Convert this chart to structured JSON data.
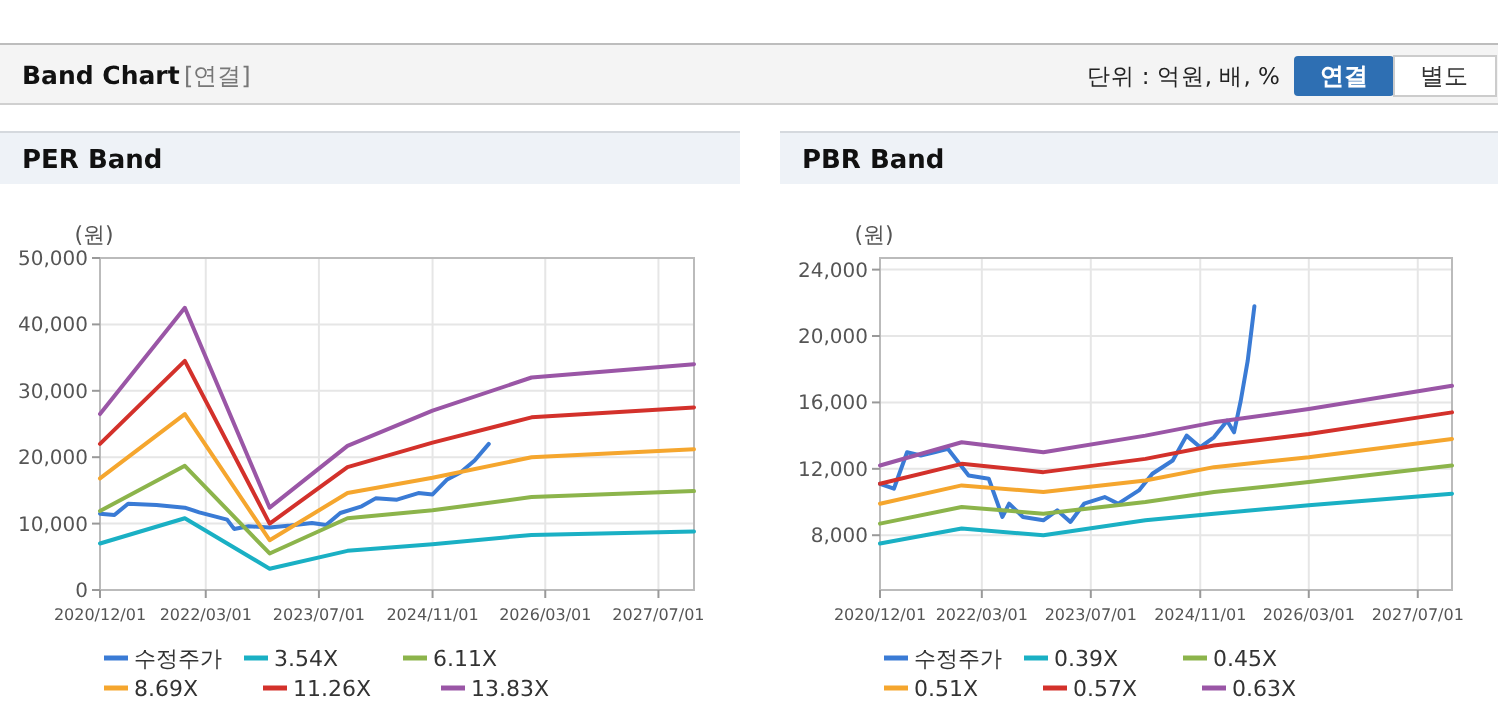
{
  "chart_data": [
    {
      "type": "line",
      "title": "PER Band",
      "ylabel": "(원)",
      "annotations": [
        "Band Chart",
        "[연결]",
        "단위 : 억원, 배, %",
        "연결",
        "별도"
      ],
      "xlim": [
        "2020-12-01",
        "2027-12-01"
      ],
      "xticks": [
        {
          "value": "2020-12-01",
          "label": "2020/12/01"
        },
        {
          "value": "2022-03-01",
          "label": "2022/03/01"
        },
        {
          "value": "2023-07-01",
          "label": "2023/07/01"
        },
        {
          "value": "2024-11-01",
          "label": "2024/11/01"
        },
        {
          "value": "2026-03-01",
          "label": "2026/03/01"
        },
        {
          "value": "2027-07-01",
          "label": "2027/07/01"
        }
      ],
      "ylim": [
        0,
        50000
      ],
      "yticks": [
        0,
        {
          "value": 10000,
          "label": "10,000"
        },
        {
          "value": 20000,
          "label": "20,000"
        },
        {
          "value": 30000,
          "label": "30,000"
        },
        {
          "value": 40000,
          "label": "40,000"
        },
        {
          "value": 50000,
          "label": "50,000"
        }
      ],
      "grid": true,
      "legend": "bottom",
      "marker": "none",
      "line_style": "solid",
      "series": [
        {
          "name": "수정주가",
          "color": "#3a7bd5",
          "x": [
            "2020-12",
            "2021-02",
            "2021-04",
            "2021-08",
            "2021-12",
            "2022-02",
            "2022-06",
            "2022-07",
            "2022-09",
            "2022-12",
            "2023-03",
            "2023-06",
            "2023-08",
            "2023-10",
            "2024-01",
            "2024-03",
            "2024-06",
            "2024-09",
            "2024-11",
            "2025-01",
            "2025-03",
            "2025-05",
            "2025-07"
          ],
          "values": [
            11500,
            11300,
            13000,
            12800,
            12400,
            11700,
            10600,
            9200,
            9600,
            9400,
            9700,
            10100,
            9800,
            11600,
            12600,
            13800,
            13600,
            14600,
            14400,
            16600,
            17700,
            19500,
            22000
          ]
        },
        {
          "name": "3.54X",
          "color": "#1ab0c4",
          "x": [
            "2020-12",
            "2021-12",
            "2022-12",
            "2023-11",
            "2024-11",
            "2026-01",
            "2027-12"
          ],
          "values": [
            7000,
            10800,
            3200,
            5900,
            6900,
            8300,
            8800
          ]
        },
        {
          "name": "6.11X",
          "color": "#8cb44b",
          "x": [
            "2020-12",
            "2021-12",
            "2022-12",
            "2023-11",
            "2024-11",
            "2026-01",
            "2027-12"
          ],
          "values": [
            11900,
            18700,
            5500,
            10800,
            12000,
            14000,
            14900
          ]
        },
        {
          "name": "8.69X",
          "color": "#f5a62e",
          "x": [
            "2020-12",
            "2021-12",
            "2022-12",
            "2023-11",
            "2024-11",
            "2026-01",
            "2027-12"
          ],
          "values": [
            16800,
            26500,
            7500,
            14600,
            16900,
            20000,
            21200
          ]
        },
        {
          "name": "11.26X",
          "color": "#d3312b",
          "x": [
            "2020-12",
            "2021-12",
            "2022-12",
            "2023-11",
            "2024-11",
            "2026-01",
            "2027-12"
          ],
          "values": [
            22000,
            34500,
            10000,
            18500,
            22200,
            26000,
            27500
          ]
        },
        {
          "name": "13.83X",
          "color": "#9a56a6",
          "x": [
            "2020-12",
            "2021-12",
            "2022-12",
            "2023-11",
            "2024-11",
            "2026-01",
            "2027-12"
          ],
          "values": [
            26500,
            42500,
            12400,
            21700,
            27000,
            32000,
            34000
          ]
        }
      ]
    },
    {
      "type": "line",
      "title": "PBR Band",
      "ylabel": "(원)",
      "xlim": [
        "2020-12-01",
        "2027-12-01"
      ],
      "xticks": [
        {
          "value": "2020-12-01",
          "label": "2020/12/01"
        },
        {
          "value": "2022-03-01",
          "label": "2022/03/01"
        },
        {
          "value": "2023-07-01",
          "label": "2023/07/01"
        },
        {
          "value": "2024-11-01",
          "label": "2024/11/01"
        },
        {
          "value": "2026-03-01",
          "label": "2026/03/01"
        },
        {
          "value": "2027-07-01",
          "label": "2027/07/01"
        }
      ],
      "ylim": [
        4700,
        24700
      ],
      "yticks": [
        {
          "value": 8000,
          "label": "8,000"
        },
        {
          "value": 12000,
          "label": "12,000"
        },
        {
          "value": 16000,
          "label": "16,000"
        },
        {
          "value": 20000,
          "label": "20,000"
        },
        {
          "value": 24000,
          "label": "24,000"
        }
      ],
      "grid": true,
      "legend": "bottom",
      "marker": "none",
      "line_style": "solid",
      "series": [
        {
          "name": "수정주가",
          "color": "#3a7bd5",
          "x": [
            "2020-12",
            "2021-02",
            "2021-04",
            "2021-06",
            "2021-08",
            "2021-10",
            "2022-01",
            "2022-04",
            "2022-06",
            "2022-07",
            "2022-09",
            "2022-12",
            "2023-02",
            "2023-04",
            "2023-06",
            "2023-09",
            "2023-11",
            "2024-02",
            "2024-04",
            "2024-07",
            "2024-09",
            "2024-11",
            "2025-01",
            "2025-03",
            "2025-04",
            "2025-05",
            "2025-06",
            "2025-07"
          ],
          "values": [
            11100,
            10800,
            13000,
            12800,
            13000,
            13200,
            11600,
            11400,
            9100,
            9900,
            9100,
            8900,
            9500,
            8800,
            9900,
            10300,
            9900,
            10700,
            11700,
            12500,
            14000,
            13300,
            13900,
            14900,
            14200,
            16100,
            18500,
            21800
          ]
        },
        {
          "name": "0.39X",
          "color": "#1ab0c4",
          "x": [
            "2020-12",
            "2021-12",
            "2022-12",
            "2024-03",
            "2025-01",
            "2026-03",
            "2027-12"
          ],
          "values": [
            7500,
            8400,
            8000,
            8900,
            9300,
            9800,
            10500
          ]
        },
        {
          "name": "0.45X",
          "color": "#8cb44b",
          "x": [
            "2020-12",
            "2021-12",
            "2022-12",
            "2024-03",
            "2025-01",
            "2026-03",
            "2027-12"
          ],
          "values": [
            8700,
            9700,
            9300,
            10000,
            10600,
            11200,
            12200
          ]
        },
        {
          "name": "0.51X",
          "color": "#f5a62e",
          "x": [
            "2020-12",
            "2021-12",
            "2022-12",
            "2024-03",
            "2025-01",
            "2026-03",
            "2027-12"
          ],
          "values": [
            9900,
            11000,
            10600,
            11300,
            12100,
            12700,
            13800
          ]
        },
        {
          "name": "0.57X",
          "color": "#d3312b",
          "x": [
            "2020-12",
            "2021-12",
            "2022-12",
            "2024-03",
            "2025-01",
            "2026-03",
            "2027-12"
          ],
          "values": [
            11100,
            12300,
            11800,
            12600,
            13400,
            14100,
            15400
          ]
        },
        {
          "name": "0.63X",
          "color": "#9a56a6",
          "x": [
            "2020-12",
            "2021-12",
            "2022-12",
            "2024-03",
            "2025-01",
            "2026-03",
            "2027-12"
          ],
          "values": [
            12200,
            13600,
            13000,
            14000,
            14800,
            15600,
            17000
          ]
        }
      ]
    }
  ]
}
